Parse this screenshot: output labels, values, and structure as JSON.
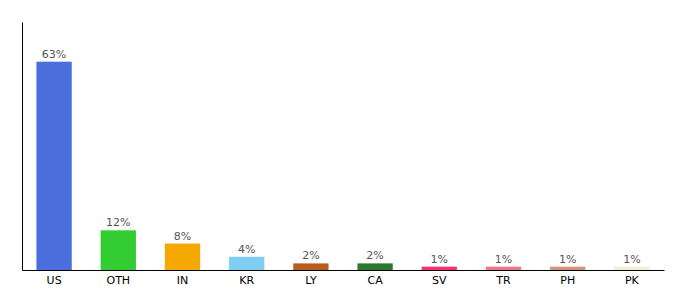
{
  "chart_data": {
    "type": "bar",
    "categories": [
      "US",
      "OTH",
      "IN",
      "KR",
      "LY",
      "CA",
      "SV",
      "TR",
      "PH",
      "PK"
    ],
    "values": [
      63,
      12,
      8,
      4,
      2,
      2,
      1,
      1,
      1,
      1
    ],
    "value_labels": [
      "63%",
      "12%",
      "8%",
      "4%",
      "2%",
      "2%",
      "1%",
      "1%",
      "1%",
      "1%"
    ],
    "colors": [
      "#4a6fdc",
      "#33cc33",
      "#f5a800",
      "#7ecef4",
      "#b85c1e",
      "#2d7a2d",
      "#ff2d78",
      "#e8788a",
      "#d4917a",
      "#f0f0d0"
    ],
    "ylim": [
      0,
      75
    ],
    "data_labels": true,
    "tick_labels": "x"
  }
}
